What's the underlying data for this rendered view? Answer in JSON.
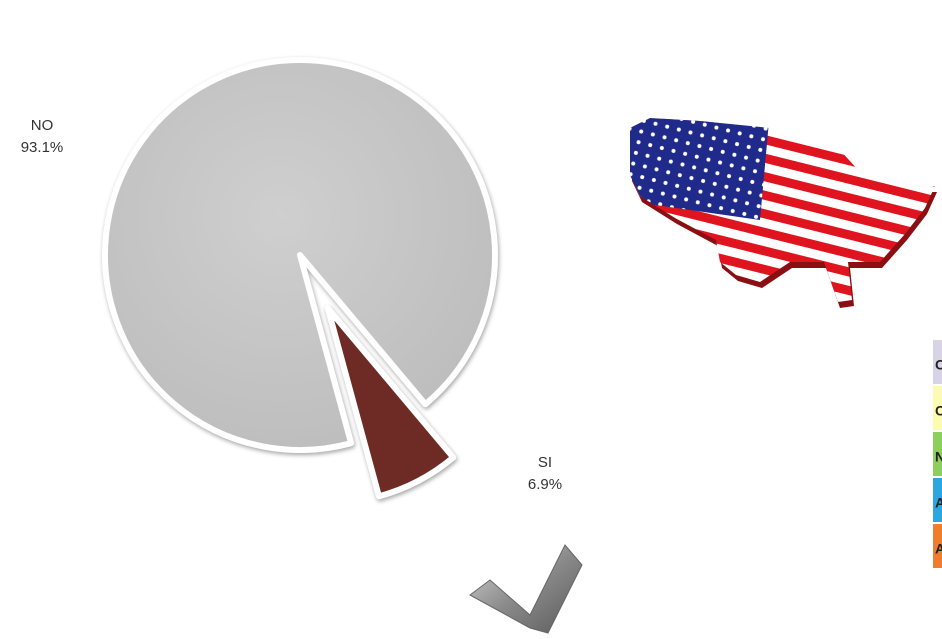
{
  "chart_data": {
    "type": "pie",
    "categories": [
      "NO",
      "SI"
    ],
    "values": [
      93.1,
      6.9
    ],
    "value_labels": [
      "93.1%",
      "6.9%"
    ],
    "colors": [
      "#c4c4c4",
      "#6e2a24"
    ]
  },
  "side_labels": [
    "C",
    "C",
    "N",
    "A",
    "A"
  ]
}
